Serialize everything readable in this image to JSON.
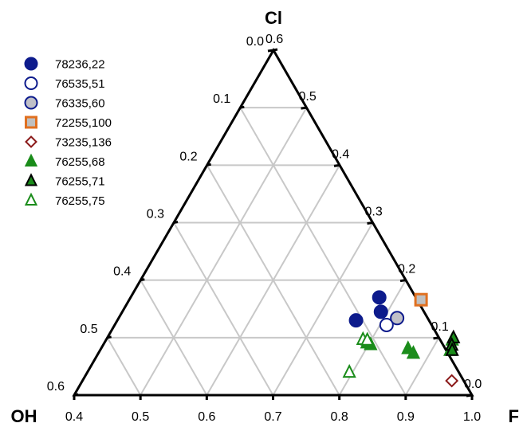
{
  "chart_data": {
    "type": "scatter",
    "subtype": "ternary",
    "vertices": {
      "top": "Cl",
      "left": "OH",
      "right": "F"
    },
    "axes": {
      "F": {
        "range": [
          0.4,
          1.0
        ],
        "ticks": [
          "0.4",
          "0.5",
          "0.6",
          "0.7",
          "0.8",
          "0.9",
          "1.0"
        ]
      },
      "Cl": {
        "range": [
          0.0,
          0.6
        ],
        "ticks": [
          "0.0",
          "0.1",
          "0.2",
          "0.3",
          "0.4",
          "0.5",
          "0.6"
        ]
      },
      "OH": {
        "range": [
          0.0,
          0.6
        ],
        "ticks": [
          "0.0",
          "0.1",
          "0.2",
          "0.3",
          "0.4",
          "0.5",
          "0.6"
        ]
      }
    },
    "grid": true,
    "legend_position": "top-left",
    "series": [
      {
        "name": "78236,22",
        "marker": "circle",
        "fill": "#0d1b8c",
        "stroke": "#0d1b8c",
        "points": [
          {
            "F": 0.775,
            "Cl": 0.17
          },
          {
            "F": 0.79,
            "Cl": 0.145
          },
          {
            "F": 0.76,
            "Cl": 0.13
          }
        ]
      },
      {
        "name": "76535,51",
        "marker": "circle",
        "fill": "#ffffff",
        "stroke": "#0d1b8c",
        "points": [
          {
            "F": 0.81,
            "Cl": 0.122
          }
        ]
      },
      {
        "name": "76335,60",
        "marker": "circle",
        "fill": "#c0c0c8",
        "stroke": "#0d1b8c",
        "points": [
          {
            "F": 0.82,
            "Cl": 0.134
          }
        ]
      },
      {
        "name": "72255,100",
        "marker": "square",
        "fill": "#c0c0c0",
        "stroke": "#e07020",
        "points": [
          {
            "F": 0.84,
            "Cl": 0.166
          }
        ]
      },
      {
        "name": "73235,136",
        "marker": "diamond",
        "fill": "#ffffff",
        "stroke": "#8b1a1a",
        "points": [
          {
            "F": 0.957,
            "Cl": 0.025
          }
        ]
      },
      {
        "name": "76255,68",
        "marker": "triangle",
        "fill": "#1a8c1a",
        "stroke": "#1a8c1a",
        "points": [
          {
            "F": 0.796,
            "Cl": 0.091
          },
          {
            "F": 0.803,
            "Cl": 0.088
          },
          {
            "F": 0.863,
            "Cl": 0.081
          },
          {
            "F": 0.875,
            "Cl": 0.073
          },
          {
            "F": 0.922,
            "Cl": 0.096
          },
          {
            "F": 0.928,
            "Cl": 0.078
          }
        ]
      },
      {
        "name": "76255,71",
        "marker": "triangle",
        "fill": "#1a8c1a",
        "stroke": "#000000",
        "points": [
          {
            "F": 0.922,
            "Cl": 0.1
          },
          {
            "F": 0.926,
            "Cl": 0.087
          },
          {
            "F": 0.931,
            "Cl": 0.078
          }
        ]
      },
      {
        "name": "76255,75",
        "marker": "triangle",
        "fill": "#ffffff",
        "stroke": "#1a8c1a",
        "points": [
          {
            "F": 0.787,
            "Cl": 0.097
          },
          {
            "F": 0.794,
            "Cl": 0.096
          },
          {
            "F": 0.795,
            "Cl": 0.04
          }
        ]
      }
    ]
  }
}
